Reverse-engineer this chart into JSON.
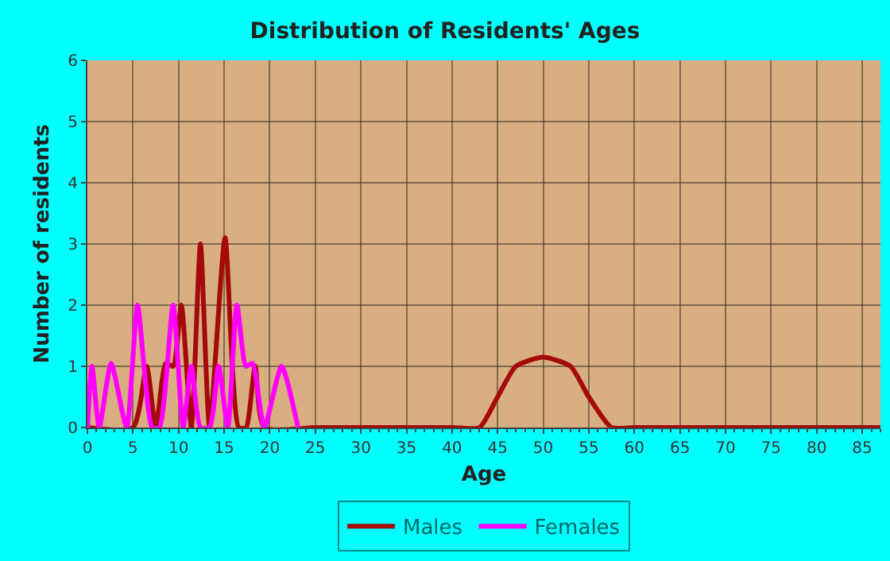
{
  "chart_data": {
    "type": "line",
    "title": "Distribution of Residents' Ages",
    "xlabel": "Age",
    "ylabel": "Number of residents",
    "xlim": [
      0,
      87
    ],
    "xticks": [
      0,
      5,
      10,
      15,
      20,
      25,
      30,
      35,
      40,
      45,
      50,
      55,
      60,
      65,
      70,
      75,
      80,
      85
    ],
    "ylim": [
      0,
      6
    ],
    "yticks": [
      0,
      1,
      2,
      3,
      4,
      5,
      6
    ],
    "grid": true,
    "legend": "bottom",
    "marker": "none",
    "line_style": "solid",
    "series": [
      {
        "name": "Males",
        "color": "#a50a0a",
        "x": [
          0,
          5,
          6.5,
          7.5,
          8.6,
          9.4,
          10.3,
          11.4,
          12.4,
          13.4,
          15.1,
          16.6,
          17.4,
          18.4,
          19.4,
          25,
          30,
          37,
          40,
          43,
          45,
          47,
          50,
          53,
          55,
          57.5,
          60,
          70,
          80,
          87
        ],
        "values": [
          0,
          0,
          1,
          0,
          1.05,
          1,
          2,
          0,
          3,
          0,
          3.1,
          0,
          0,
          1,
          0,
          0,
          0,
          0,
          0,
          0,
          0.5,
          1,
          1.15,
          1,
          0.5,
          0,
          0,
          0,
          0,
          0
        ]
      },
      {
        "name": "Females",
        "color": "#ff00ff",
        "x": [
          0,
          0.5,
          1.3,
          2.6,
          4.3,
          5.5,
          7.1,
          7.9,
          9.4,
          10.5,
          11.4,
          12.4,
          13.4,
          14.4,
          15.4,
          16.4,
          17.4,
          18.1,
          19.4,
          21.3,
          23.1
        ],
        "values": [
          0,
          1,
          0,
          1.05,
          0,
          2,
          0,
          0,
          2,
          0,
          1,
          0,
          0,
          1,
          0,
          2,
          1,
          1.05,
          0,
          1,
          0
        ]
      }
    ]
  }
}
